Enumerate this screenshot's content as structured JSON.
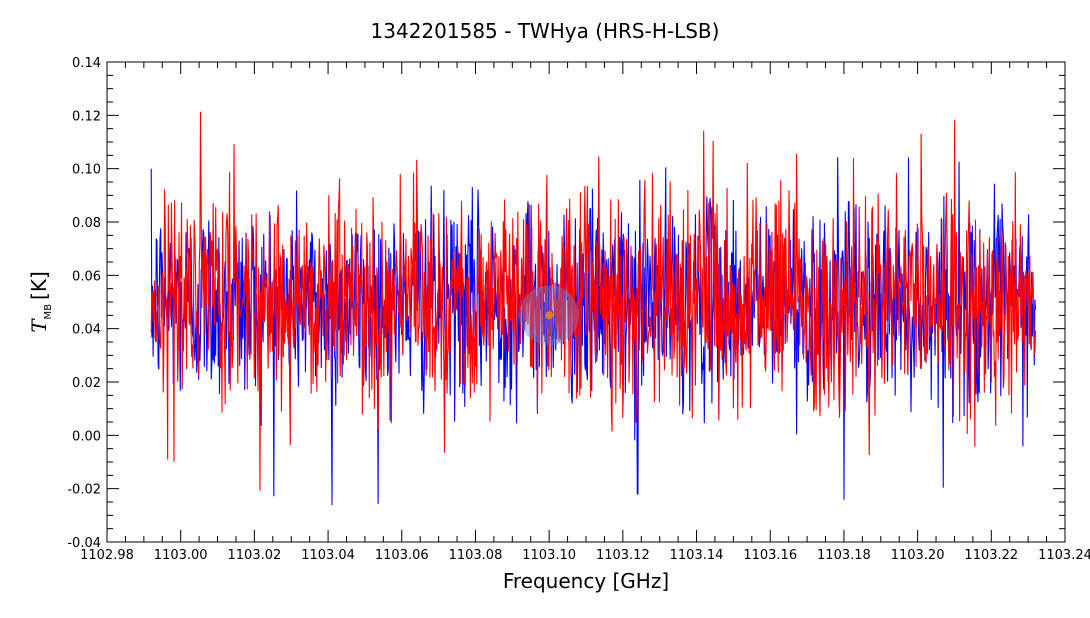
{
  "chart_data": {
    "type": "line",
    "title": "1342201585 - TWHya (HRS-H-LSB)",
    "xlabel": "Frequency [GHz]",
    "ylabel_main": "T",
    "ylabel_sub": "MB",
    "ylabel_unit": "[K]",
    "xlim": [
      1102.98,
      1103.24
    ],
    "ylim": [
      -0.04,
      0.14
    ],
    "xticks": [
      "1102.98",
      "1103.00",
      "1103.02",
      "1103.04",
      "1103.06",
      "1103.08",
      "1103.10",
      "1103.12",
      "1103.14",
      "1103.16",
      "1103.18",
      "1103.20",
      "1103.22",
      "1103.24"
    ],
    "yticks": [
      "-0.04",
      "-0.02",
      "0.00",
      "0.02",
      "0.04",
      "0.06",
      "0.08",
      "0.10",
      "0.12",
      "0.14"
    ],
    "grid": false,
    "legend": "none",
    "x_range_data": [
      1102.992,
      1103.232
    ],
    "series": [
      {
        "color": "#0000ff",
        "baseline": 0.05,
        "noise_std": 0.018,
        "n_points": 1400
      },
      {
        "color": "#ff0000",
        "baseline": 0.052,
        "noise_std": 0.02,
        "n_points": 1400
      }
    ],
    "notable_values": [
      {
        "x": 1103.041,
        "y": -0.026
      },
      {
        "x": 1103.124,
        "y": -0.022
      },
      {
        "x": 1103.18,
        "y": -0.024
      },
      {
        "x": 1103.21,
        "y": 0.118
      },
      {
        "x": 1103.142,
        "y": 0.114
      },
      {
        "x": 1103.201,
        "y": 0.113
      }
    ],
    "highlight": {
      "x": 1103.1,
      "y": 0.045,
      "color": "#6a7fd6"
    }
  }
}
